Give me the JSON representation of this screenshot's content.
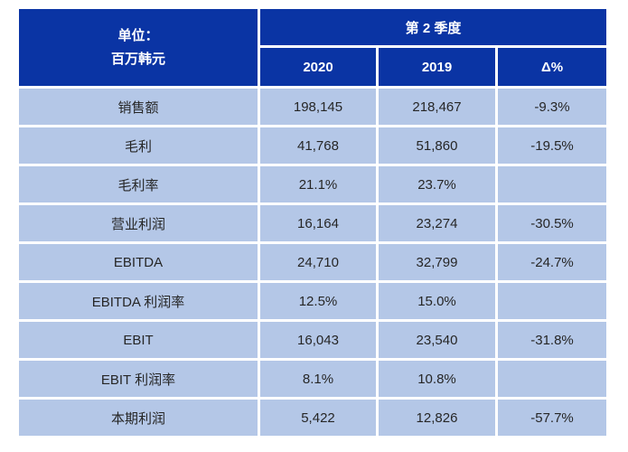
{
  "colors": {
    "header_bg": "#0A34A4",
    "row_bg": "#B4C7E7",
    "header_text": "#FFFFFF",
    "body_text": "#262626",
    "grid_gap": "#FFFFFF"
  },
  "chart_data": {
    "type": "table",
    "title": "第 2 季度",
    "unit_label_line1": "单位：",
    "unit_label_line2": "百万韩元",
    "columns": [
      "2020",
      "2019",
      "Δ%"
    ],
    "rows": [
      {
        "label": "销售额",
        "v2020": "198,145",
        "v2019": "218,467",
        "delta": "-9.3%"
      },
      {
        "label": "毛利",
        "v2020": "41,768",
        "v2019": "51,860",
        "delta": "-19.5%"
      },
      {
        "label": "毛利率",
        "v2020": "21.1%",
        "v2019": "23.7%",
        "delta": ""
      },
      {
        "label": "营业利润",
        "v2020": "16,164",
        "v2019": "23,274",
        "delta": "-30.5%"
      },
      {
        "label": "EBITDA",
        "v2020": "24,710",
        "v2019": "32,799",
        "delta": "-24.7%"
      },
      {
        "label": "EBITDA 利润率",
        "v2020": "12.5%",
        "v2019": "15.0%",
        "delta": ""
      },
      {
        "label": "EBIT",
        "v2020": "16,043",
        "v2019": "23,540",
        "delta": "-31.8%"
      },
      {
        "label": "EBIT 利润率",
        "v2020": "8.1%",
        "v2019": "10.8%",
        "delta": ""
      },
      {
        "label": "本期利润",
        "v2020": "5,422",
        "v2019": "12,826",
        "delta": "-57.7%"
      }
    ]
  }
}
